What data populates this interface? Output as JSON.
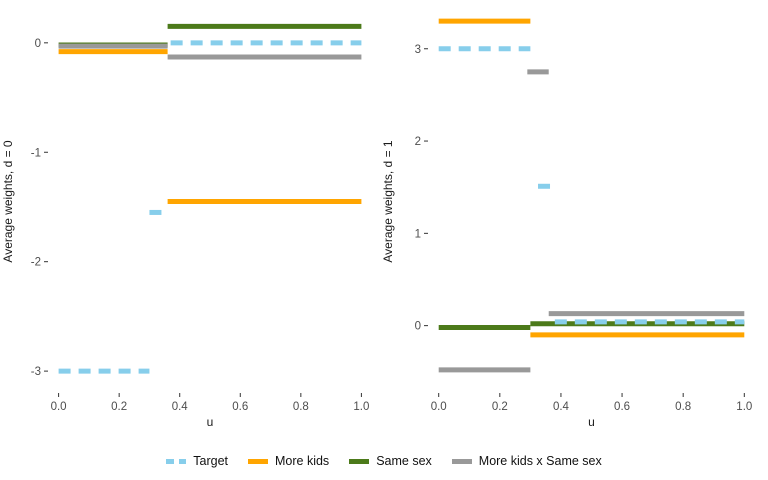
{
  "figure": {
    "background": "#ffffff"
  },
  "legend": {
    "items": [
      {
        "label": "Target",
        "color": "#87CEEB",
        "dashed": true
      },
      {
        "label": "More kids",
        "color": "#FFA500",
        "dashed": false
      },
      {
        "label": "Same sex",
        "color": "#4C7A1A",
        "dashed": false
      },
      {
        "label": "More kids x Same sex",
        "color": "#999999",
        "dashed": false
      }
    ]
  },
  "chart_data": [
    {
      "type": "line",
      "panel": "d0",
      "title": "",
      "xlabel": "u",
      "ylabel": "Average weights, d = 0",
      "xlim": [
        -0.035,
        1.035
      ],
      "ylim": [
        -3.2,
        0.3
      ],
      "xticks": [
        0.0,
        0.2,
        0.4,
        0.6,
        0.8,
        1.0
      ],
      "yticks": [
        0,
        -1,
        -2,
        -3
      ],
      "grid": false,
      "series": [
        {
          "name": "Same sex",
          "color": "#4C7A1A",
          "dashed": false,
          "segments": [
            {
              "x": [
                0.0,
                0.36
              ],
              "y": -0.02
            },
            {
              "x": [
                0.36,
                1.0
              ],
              "y": 0.15
            }
          ]
        },
        {
          "name": "More kids x Same sex",
          "color": "#999999",
          "dashed": false,
          "segments": [
            {
              "x": [
                0.0,
                0.36
              ],
              "y": -0.03
            },
            {
              "x": [
                0.36,
                1.0
              ],
              "y": -0.13
            }
          ]
        },
        {
          "name": "More kids",
          "color": "#FFA500",
          "dashed": false,
          "segments": [
            {
              "x": [
                0.0,
                0.36
              ],
              "y": -0.08
            },
            {
              "x": [
                0.36,
                1.0
              ],
              "y": -1.45
            }
          ]
        },
        {
          "name": "Target",
          "color": "#87CEEB",
          "dashed": true,
          "segments": [
            {
              "x": [
                0.0,
                0.3
              ],
              "y": -3.0
            },
            {
              "x": [
                0.3,
                0.35
              ],
              "y": -1.55
            },
            {
              "x": [
                0.37,
                1.0
              ],
              "y": 0.0
            }
          ]
        }
      ]
    },
    {
      "type": "line",
      "panel": "d1",
      "title": "",
      "xlabel": "u",
      "ylabel": "Average weights, d = 1",
      "xlim": [
        -0.035,
        1.035
      ],
      "ylim": [
        -0.73,
        3.42
      ],
      "xticks": [
        0.0,
        0.2,
        0.4,
        0.6,
        0.8,
        1.0
      ],
      "yticks": [
        0,
        1,
        2,
        3
      ],
      "grid": false,
      "series": [
        {
          "name": "Same sex",
          "color": "#4C7A1A",
          "dashed": false,
          "segments": [
            {
              "x": [
                0.0,
                0.3
              ],
              "y": -0.02
            },
            {
              "x": [
                0.3,
                1.0
              ],
              "y": 0.02
            }
          ]
        },
        {
          "name": "More kids x Same sex",
          "color": "#999999",
          "dashed": false,
          "segments": [
            {
              "x": [
                0.0,
                0.3
              ],
              "y": -0.48
            },
            {
              "x": [
                0.29,
                0.36
              ],
              "y": 2.75
            },
            {
              "x": [
                0.36,
                1.0
              ],
              "y": 0.13
            }
          ]
        },
        {
          "name": "More kids",
          "color": "#FFA500",
          "dashed": false,
          "segments": [
            {
              "x": [
                0.0,
                0.3
              ],
              "y": 3.3
            },
            {
              "x": [
                0.3,
                1.0
              ],
              "y": -0.1
            }
          ]
        },
        {
          "name": "Target",
          "color": "#87CEEB",
          "dashed": true,
          "segments": [
            {
              "x": [
                0.0,
                0.3
              ],
              "y": 3.0
            },
            {
              "x": [
                0.325,
                0.365
              ],
              "y": 1.51
            },
            {
              "x": [
                0.38,
                1.0
              ],
              "y": 0.04
            }
          ]
        }
      ]
    }
  ]
}
